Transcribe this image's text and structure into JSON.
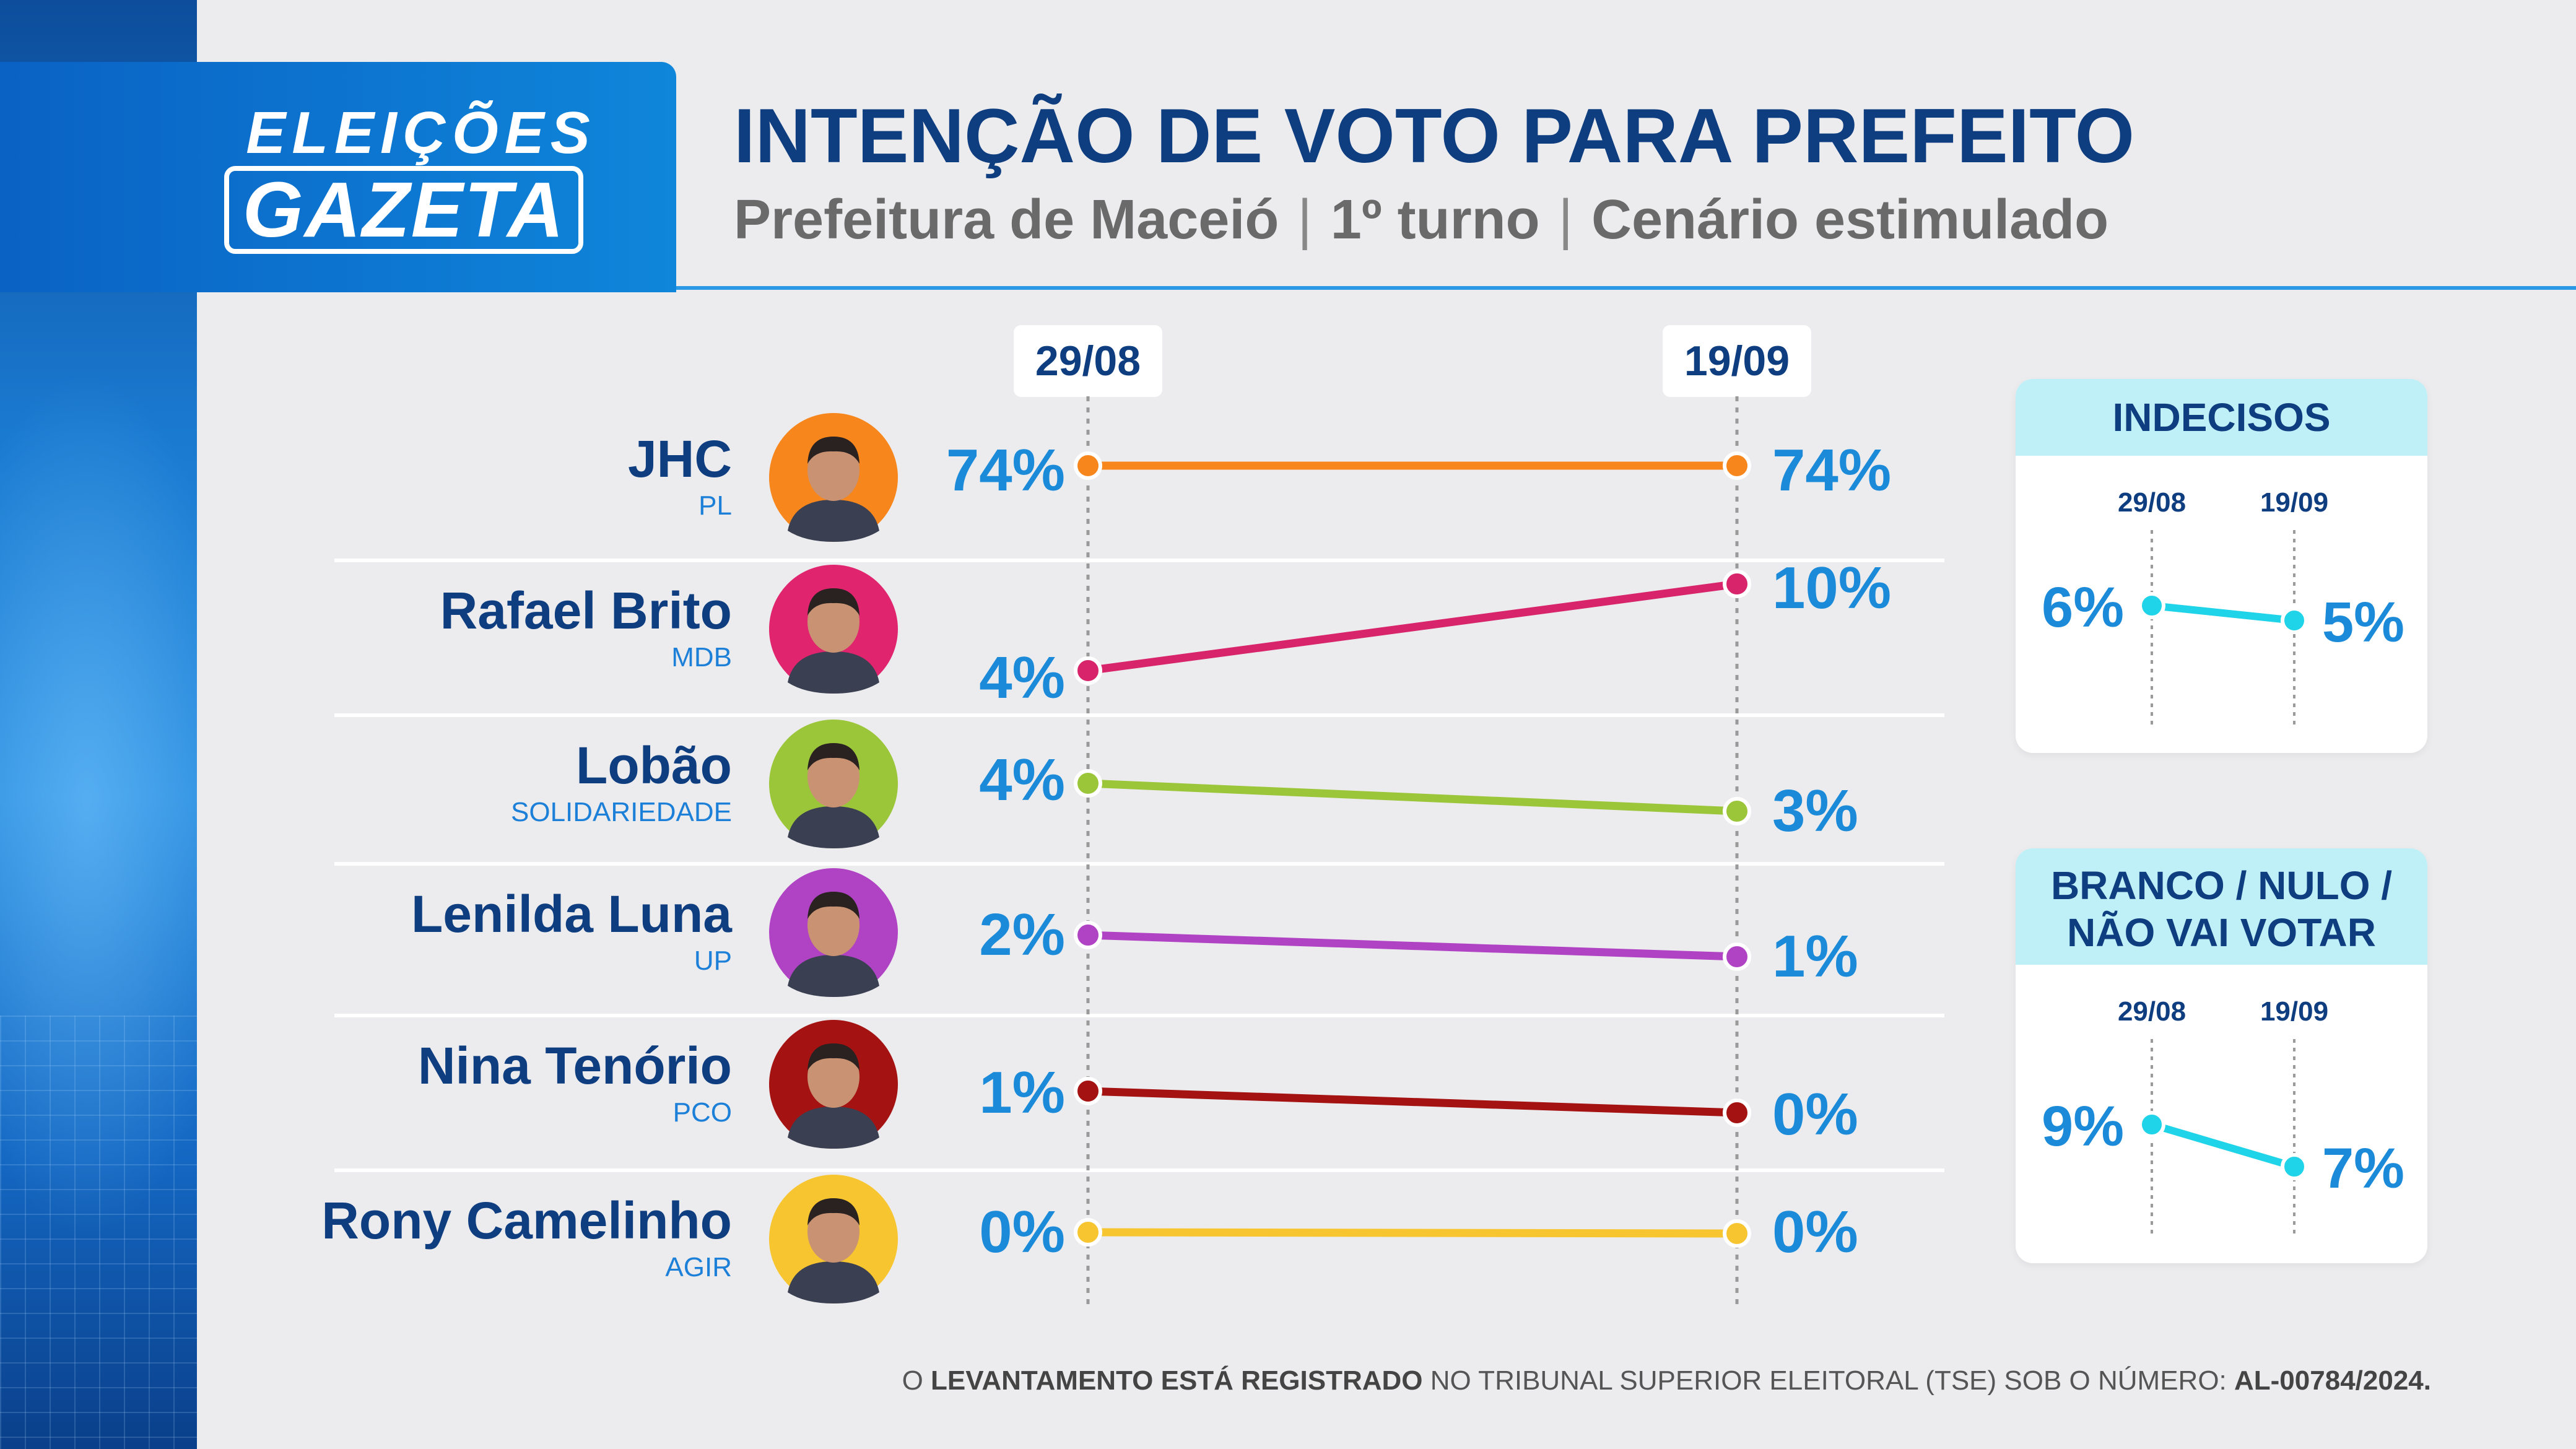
{
  "brand": {
    "line1": "ELEIÇÕES",
    "line2": "GAZETA"
  },
  "header": {
    "title": "INTENÇÃO DE VOTO PARA PREFEITO",
    "subtitle_parts": [
      "Prefeitura de Maceió",
      "1º turno",
      "Cenário estimulado"
    ],
    "separator": "|"
  },
  "colors": {
    "brand_blue": "#0f86da",
    "title_navy": "#0f3e80",
    "value_blue": "#1a8ad9",
    "panel_cyan": "#1fd3e8"
  },
  "chart_data": [
    {
      "type": "line",
      "x": [
        "29/08",
        "19/09"
      ],
      "series": [
        {
          "name": "JHC",
          "party": "PL",
          "values": [
            74,
            74
          ],
          "color": "#f7861c",
          "avatar_color": "#f7861c",
          "labels": [
            "74%",
            "74%"
          ]
        },
        {
          "name": "Rafael Brito",
          "party": "MDB",
          "values": [
            4,
            10
          ],
          "color": "#d8246a",
          "avatar_color": "#e0246e",
          "labels": [
            "4%",
            "10%"
          ]
        },
        {
          "name": "Lobão",
          "party": "SOLIDARIEDADE",
          "values": [
            4,
            3
          ],
          "color": "#9cc63a",
          "avatar_color": "#9cc63a",
          "labels": [
            "4%",
            "3%"
          ]
        },
        {
          "name": "Lenilda Luna",
          "party": "UP",
          "values": [
            2,
            1
          ],
          "color": "#b043c4",
          "avatar_color": "#b043c4",
          "labels": [
            "2%",
            "1%"
          ]
        },
        {
          "name": "Nina Tenório",
          "party": "PCO",
          "values": [
            1,
            0
          ],
          "color": "#a51212",
          "avatar_color": "#a51212",
          "labels": [
            "1%",
            "0%"
          ]
        },
        {
          "name": "Rony Camelinho",
          "party": "AGIR",
          "values": [
            0,
            0
          ],
          "color": "#f7c530",
          "avatar_color": "#f7c530",
          "labels": [
            "0%",
            "0%"
          ]
        }
      ]
    },
    {
      "type": "line",
      "title": "INDECISOS",
      "x": [
        "29/08",
        "19/09"
      ],
      "series": [
        {
          "values": [
            6,
            5
          ],
          "labels": [
            "6%",
            "5%"
          ],
          "color": "#1fd3e8"
        }
      ]
    },
    {
      "type": "line",
      "title": "BRANCO / NULO / NÃO VAI VOTAR",
      "title_lines": [
        "BRANCO / NULO /",
        "NÃO VAI VOTAR"
      ],
      "x": [
        "29/08",
        "19/09"
      ],
      "series": [
        {
          "values": [
            9,
            7
          ],
          "labels": [
            "9%",
            "7%"
          ],
          "color": "#1fd3e8"
        }
      ]
    }
  ],
  "footer": {
    "prefix": "O ",
    "bold1": "LEVANTAMENTO ESTÁ REGISTRADO",
    "middle": " NO TRIBUNAL SUPERIOR ELEITORAL (TSE) SOB O NÚMERO: ",
    "bold2": "AL-00784/2024."
  }
}
